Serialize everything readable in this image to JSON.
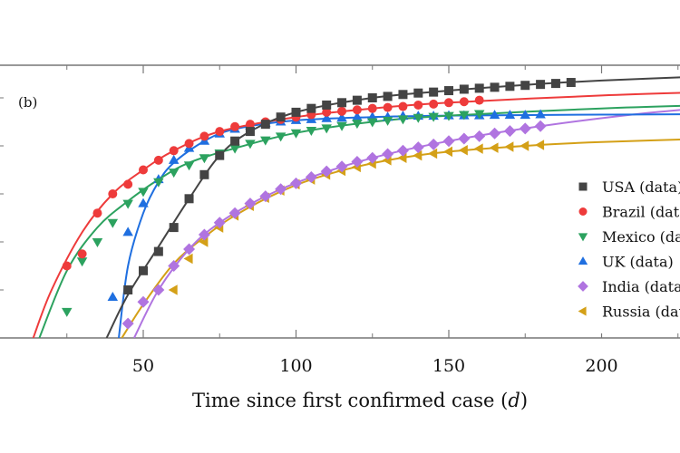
{
  "chart_data": {
    "type": "line",
    "panel_label": "(b)",
    "title": "",
    "xlabel": "Time since first confirmed case",
    "xlabel_unit": "d",
    "ylabel": "",
    "xlim": [
      -5,
      235
    ],
    "ylim": [
      0,
      5.7
    ],
    "xticks_major": [
      50,
      100,
      150,
      200
    ],
    "xticks_minor": [
      25,
      75,
      125,
      175,
      225
    ],
    "yticks": [
      0,
      1,
      2,
      3,
      4,
      5
    ],
    "grid": false,
    "legend_position": "right",
    "series": [
      {
        "name": "USA (data)",
        "color": "#444444",
        "marker": "square",
        "points": [
          [
            45,
            1.0
          ],
          [
            50,
            1.4
          ],
          [
            55,
            1.8
          ],
          [
            60,
            2.3
          ],
          [
            65,
            2.9
          ],
          [
            70,
            3.4
          ],
          [
            75,
            3.8
          ],
          [
            80,
            4.1
          ],
          [
            85,
            4.3
          ],
          [
            90,
            4.45
          ],
          [
            95,
            4.6
          ],
          [
            100,
            4.7
          ],
          [
            105,
            4.78
          ],
          [
            110,
            4.85
          ],
          [
            115,
            4.9
          ],
          [
            120,
            4.95
          ],
          [
            125,
            5.0
          ],
          [
            130,
            5.03
          ],
          [
            135,
            5.07
          ],
          [
            140,
            5.1
          ],
          [
            145,
            5.12
          ],
          [
            150,
            5.15
          ],
          [
            155,
            5.18
          ],
          [
            160,
            5.2
          ],
          [
            165,
            5.22
          ],
          [
            170,
            5.24
          ],
          [
            175,
            5.26
          ],
          [
            180,
            5.28
          ],
          [
            185,
            5.3
          ],
          [
            190,
            5.32
          ]
        ],
        "fit": [
          [
            38,
            0
          ],
          [
            45,
            0.9
          ],
          [
            55,
            1.9
          ],
          [
            65,
            2.9
          ],
          [
            75,
            3.8
          ],
          [
            85,
            4.3
          ],
          [
            100,
            4.7
          ],
          [
            125,
            5.0
          ],
          [
            150,
            5.15
          ],
          [
            175,
            5.27
          ],
          [
            200,
            5.36
          ],
          [
            235,
            5.45
          ]
        ]
      },
      {
        "name": "Brazil (data)",
        "color": "#ee3b3b",
        "marker": "circle",
        "points": [
          [
            25,
            1.5
          ],
          [
            30,
            1.75
          ],
          [
            35,
            2.6
          ],
          [
            40,
            3.0
          ],
          [
            45,
            3.2
          ],
          [
            50,
            3.5
          ],
          [
            55,
            3.7
          ],
          [
            60,
            3.9
          ],
          [
            65,
            4.05
          ],
          [
            70,
            4.2
          ],
          [
            75,
            4.3
          ],
          [
            80,
            4.4
          ],
          [
            85,
            4.45
          ],
          [
            90,
            4.5
          ],
          [
            95,
            4.55
          ],
          [
            100,
            4.6
          ],
          [
            105,
            4.65
          ],
          [
            110,
            4.7
          ],
          [
            115,
            4.72
          ],
          [
            120,
            4.75
          ],
          [
            125,
            4.78
          ],
          [
            130,
            4.8
          ],
          [
            135,
            4.82
          ],
          [
            140,
            4.85
          ],
          [
            145,
            4.87
          ],
          [
            150,
            4.9
          ],
          [
            155,
            4.92
          ],
          [
            160,
            4.95
          ]
        ],
        "fit": [
          [
            14,
            0
          ],
          [
            20,
            1.0
          ],
          [
            30,
            2.2
          ],
          [
            40,
            3.0
          ],
          [
            50,
            3.5
          ],
          [
            60,
            3.9
          ],
          [
            75,
            4.3
          ],
          [
            100,
            4.6
          ],
          [
            125,
            4.78
          ],
          [
            150,
            4.9
          ],
          [
            200,
            5.05
          ],
          [
            235,
            5.12
          ]
        ]
      },
      {
        "name": "Mexico (data)",
        "color": "#2ca25f",
        "marker": "triangle-down",
        "points": [
          [
            25,
            0.55
          ],
          [
            30,
            1.6
          ],
          [
            35,
            2.0
          ],
          [
            40,
            2.4
          ],
          [
            45,
            2.8
          ],
          [
            50,
            3.05
          ],
          [
            55,
            3.25
          ],
          [
            60,
            3.45
          ],
          [
            65,
            3.6
          ],
          [
            70,
            3.75
          ],
          [
            75,
            3.85
          ],
          [
            80,
            3.95
          ],
          [
            85,
            4.05
          ],
          [
            90,
            4.12
          ],
          [
            95,
            4.2
          ],
          [
            100,
            4.27
          ],
          [
            105,
            4.32
          ],
          [
            110,
            4.37
          ],
          [
            115,
            4.42
          ],
          [
            120,
            4.47
          ],
          [
            125,
            4.5
          ],
          [
            130,
            4.53
          ],
          [
            135,
            4.56
          ],
          [
            140,
            4.59
          ],
          [
            145,
            4.61
          ],
          [
            150,
            4.63
          ],
          [
            155,
            4.65
          ],
          [
            160,
            4.67
          ]
        ],
        "fit": [
          [
            16,
            0
          ],
          [
            25,
            1.4
          ],
          [
            35,
            2.3
          ],
          [
            45,
            2.85
          ],
          [
            55,
            3.3
          ],
          [
            65,
            3.65
          ],
          [
            80,
            3.95
          ],
          [
            100,
            4.27
          ],
          [
            125,
            4.5
          ],
          [
            150,
            4.63
          ],
          [
            200,
            4.78
          ],
          [
            235,
            4.85
          ]
        ]
      },
      {
        "name": "UK (data)",
        "color": "#1f6fe0",
        "marker": "triangle-up",
        "points": [
          [
            40,
            0.85
          ],
          [
            45,
            2.2
          ],
          [
            50,
            2.8
          ],
          [
            55,
            3.3
          ],
          [
            60,
            3.7
          ],
          [
            65,
            3.95
          ],
          [
            70,
            4.1
          ],
          [
            75,
            4.25
          ],
          [
            80,
            4.35
          ],
          [
            85,
            4.42
          ],
          [
            90,
            4.47
          ],
          [
            95,
            4.5
          ],
          [
            100,
            4.53
          ],
          [
            105,
            4.55
          ],
          [
            110,
            4.57
          ],
          [
            115,
            4.58
          ],
          [
            120,
            4.6
          ],
          [
            125,
            4.6
          ],
          [
            130,
            4.6
          ],
          [
            135,
            4.62
          ],
          [
            140,
            4.62
          ],
          [
            145,
            4.62
          ],
          [
            150,
            4.63
          ],
          [
            155,
            4.63
          ],
          [
            160,
            4.63
          ],
          [
            165,
            4.64
          ],
          [
            170,
            4.64
          ],
          [
            175,
            4.64
          ],
          [
            180,
            4.65
          ]
        ],
        "fit": [
          [
            42,
            0
          ],
          [
            45,
            1.5
          ],
          [
            50,
            2.6
          ],
          [
            55,
            3.25
          ],
          [
            60,
            3.65
          ],
          [
            70,
            4.1
          ],
          [
            80,
            4.35
          ],
          [
            100,
            4.53
          ],
          [
            125,
            4.6
          ],
          [
            150,
            4.63
          ],
          [
            200,
            4.65
          ],
          [
            235,
            4.66
          ]
        ]
      },
      {
        "name": "India (data)",
        "color": "#b074e0",
        "marker": "diamond",
        "points": [
          [
            45,
            0.3
          ],
          [
            50,
            0.75
          ],
          [
            55,
            1.0
          ],
          [
            60,
            1.5
          ],
          [
            65,
            1.85
          ],
          [
            70,
            2.15
          ],
          [
            75,
            2.4
          ],
          [
            80,
            2.6
          ],
          [
            85,
            2.8
          ],
          [
            90,
            2.95
          ],
          [
            95,
            3.1
          ],
          [
            100,
            3.22
          ],
          [
            105,
            3.35
          ],
          [
            110,
            3.47
          ],
          [
            115,
            3.57
          ],
          [
            120,
            3.67
          ],
          [
            125,
            3.75
          ],
          [
            130,
            3.83
          ],
          [
            135,
            3.9
          ],
          [
            140,
            3.97
          ],
          [
            145,
            4.03
          ],
          [
            150,
            4.1
          ],
          [
            155,
            4.15
          ],
          [
            160,
            4.2
          ],
          [
            165,
            4.26
          ],
          [
            170,
            4.31
          ],
          [
            175,
            4.36
          ],
          [
            180,
            4.41
          ]
        ],
        "fit": [
          [
            47,
            0
          ],
          [
            55,
            1.0
          ],
          [
            65,
            1.85
          ],
          [
            75,
            2.4
          ],
          [
            90,
            2.95
          ],
          [
            105,
            3.35
          ],
          [
            125,
            3.75
          ],
          [
            150,
            4.1
          ],
          [
            180,
            4.41
          ],
          [
            210,
            4.65
          ],
          [
            235,
            4.8
          ]
        ]
      },
      {
        "name": "Russia (data)",
        "color": "#d4a017",
        "marker": "triangle-left",
        "points": [
          [
            60,
            1.0
          ],
          [
            65,
            1.65
          ],
          [
            70,
            2.0
          ],
          [
            75,
            2.3
          ],
          [
            80,
            2.55
          ],
          [
            85,
            2.75
          ],
          [
            90,
            2.92
          ],
          [
            95,
            3.07
          ],
          [
            100,
            3.2
          ],
          [
            105,
            3.3
          ],
          [
            110,
            3.4
          ],
          [
            115,
            3.48
          ],
          [
            120,
            3.56
          ],
          [
            125,
            3.63
          ],
          [
            130,
            3.7
          ],
          [
            135,
            3.75
          ],
          [
            140,
            3.8
          ],
          [
            145,
            3.84
          ],
          [
            150,
            3.88
          ],
          [
            155,
            3.91
          ],
          [
            160,
            3.94
          ],
          [
            165,
            3.96
          ],
          [
            170,
            3.98
          ],
          [
            175,
            4.0
          ],
          [
            180,
            4.02
          ]
        ],
        "fit": [
          [
            43,
            0
          ],
          [
            50,
            0.7
          ],
          [
            60,
            1.55
          ],
          [
            70,
            2.1
          ],
          [
            80,
            2.55
          ],
          [
            95,
            3.05
          ],
          [
            110,
            3.4
          ],
          [
            130,
            3.7
          ],
          [
            150,
            3.88
          ],
          [
            180,
            4.02
          ],
          [
            200,
            4.08
          ],
          [
            235,
            4.15
          ]
        ]
      }
    ]
  }
}
